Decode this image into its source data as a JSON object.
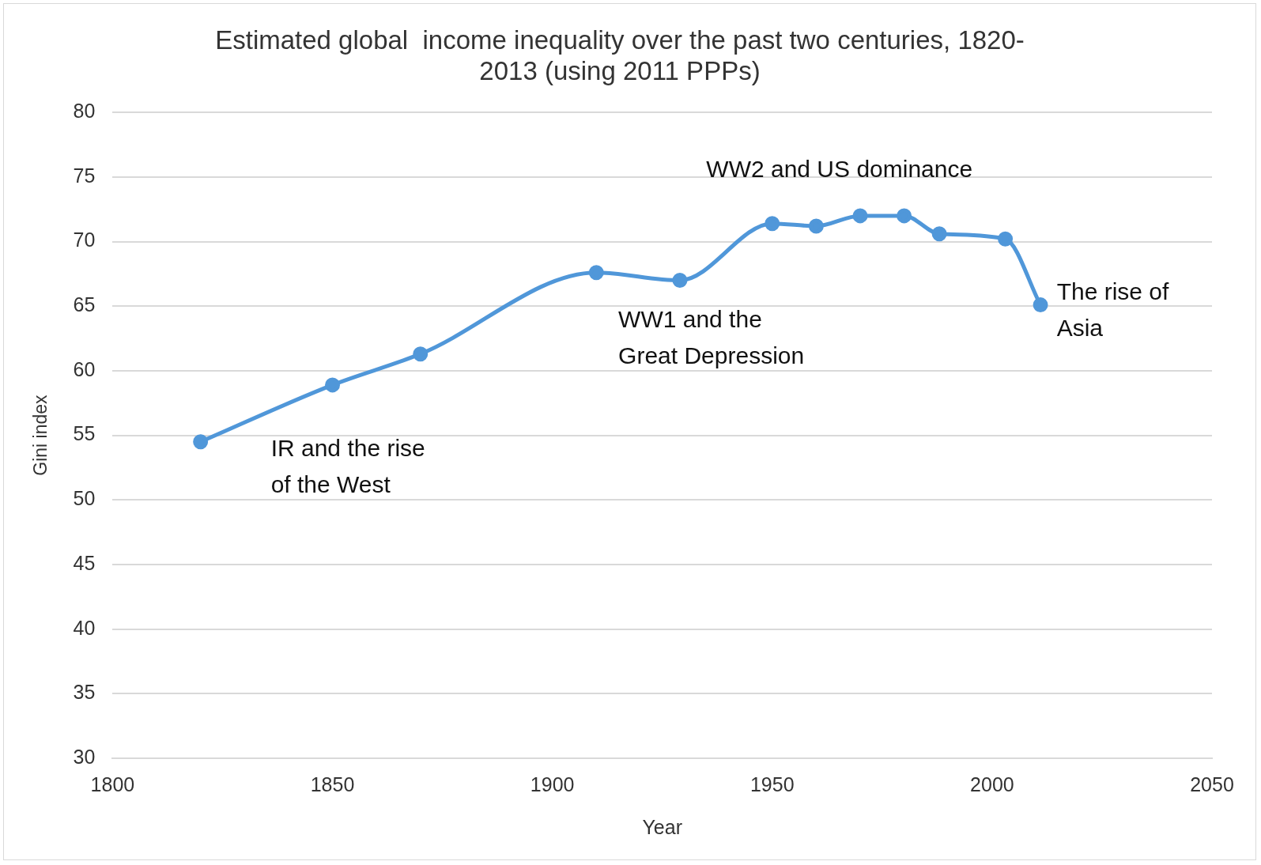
{
  "chart_data": {
    "type": "line",
    "title": "Estimated global  income inequality over the past two centuries, 1820-\n2013 (using 2011 PPPs)",
    "xlabel": "Year",
    "ylabel": "Gini index",
    "x": [
      1820,
      1850,
      1870,
      1910,
      1929,
      1950,
      1960,
      1970,
      1980,
      1988,
      2003,
      2011
    ],
    "series": [
      {
        "color": "#5097d9",
        "values": [
          54.5,
          58.9,
          61.3,
          67.6,
          67.0,
          71.4,
          71.2,
          72.0,
          72.0,
          70.6,
          70.2,
          65.1
        ]
      }
    ],
    "xlim": [
      1800,
      2050
    ],
    "xticks": [
      1800,
      1850,
      1900,
      1950,
      2000,
      2050
    ],
    "ylim": [
      30,
      80
    ],
    "yticks": [
      30,
      35,
      40,
      45,
      50,
      55,
      60,
      65,
      70,
      75,
      80
    ],
    "grid": "y",
    "legend": false,
    "marker": "circle",
    "line_style": "solid",
    "annotations": [
      "IR and the rise\nof the West",
      "WW1 and the\nGreat Depression",
      "WW2 and US dominance",
      "The rise of\nAsia"
    ]
  }
}
